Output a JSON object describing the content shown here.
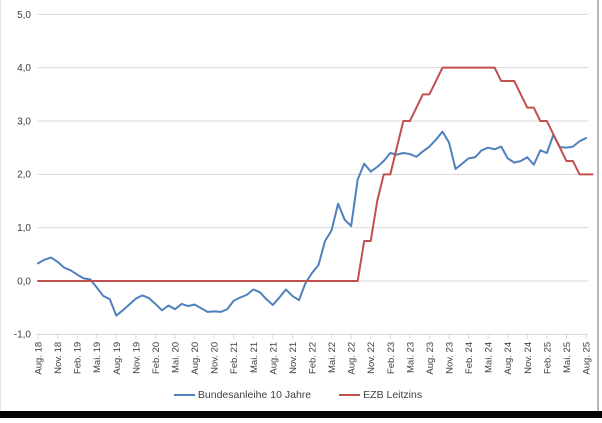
{
  "chart_data": {
    "type": "line",
    "title": "",
    "xlabel": "",
    "ylabel": "",
    "grid": true,
    "legend_position": "bottom",
    "ylim": [
      -1.0,
      5.0
    ],
    "y_tick_values": [
      5,
      4,
      3,
      2,
      1,
      0,
      -1
    ],
    "y_tick_labels": [
      "5,0",
      "4,0",
      "3,0",
      "2,0",
      "1,0",
      "0,0",
      "-1,0"
    ],
    "x_tick_labels": [
      "Aug. 18",
      "Nov. 18",
      "Feb. 19",
      "Mai. 19",
      "Aug. 19",
      "Nov. 19",
      "Feb. 20",
      "Mai. 20",
      "Aug. 20",
      "Nov. 20",
      "Feb. 21",
      "Mai. 21",
      "Aug. 21",
      "Nov. 21",
      "Feb. 22",
      "Mai. 22",
      "Aug. 22",
      "Nov. 22",
      "Feb. 23",
      "Mai. 23",
      "Aug. 23",
      "Nov. 23",
      "Feb. 24",
      "Mai. 24",
      "Aug. 24",
      "Nov. 24",
      "Feb. 25",
      "Mai. 25",
      "Aug. 25"
    ],
    "x_points_per_tick": 3,
    "n_points": 85,
    "series": [
      {
        "name": "Bundesanleihe 10 Jahre",
        "color": "#4F81BD",
        "values": [
          0.33,
          0.4,
          0.44,
          0.36,
          0.25,
          0.2,
          0.12,
          0.05,
          0.03,
          -0.12,
          -0.28,
          -0.34,
          -0.65,
          -0.55,
          -0.44,
          -0.33,
          -0.27,
          -0.32,
          -0.43,
          -0.55,
          -0.46,
          -0.53,
          -0.43,
          -0.47,
          -0.44,
          -0.51,
          -0.58,
          -0.57,
          -0.58,
          -0.53,
          -0.37,
          -0.31,
          -0.26,
          -0.16,
          -0.21,
          -0.34,
          -0.45,
          -0.31,
          -0.16,
          -0.28,
          -0.36,
          -0.04,
          0.15,
          0.3,
          0.75,
          0.95,
          1.45,
          1.15,
          1.03,
          1.9,
          2.2,
          2.05,
          2.14,
          2.25,
          2.4,
          2.37,
          2.4,
          2.38,
          2.33,
          2.43,
          2.52,
          2.65,
          2.8,
          2.6,
          2.1,
          2.2,
          2.3,
          2.32,
          2.45,
          2.5,
          2.47,
          2.52,
          2.3,
          2.22,
          2.25,
          2.32,
          2.18,
          2.45,
          2.4,
          2.74,
          2.51,
          2.5,
          2.52,
          2.62,
          2.68
        ]
      },
      {
        "name": "EZB Leitzins",
        "color": "#C0504D",
        "values": [
          0,
          0,
          0,
          0,
          0,
          0,
          0,
          0,
          0,
          0,
          0,
          0,
          0,
          0,
          0,
          0,
          0,
          0,
          0,
          0,
          0,
          0,
          0,
          0,
          0,
          0,
          0,
          0,
          0,
          0,
          0,
          0,
          0,
          0,
          0,
          0,
          0,
          0,
          0,
          0,
          0,
          0,
          0,
          0,
          0,
          0,
          0,
          0,
          0,
          0,
          0.75,
          0.75,
          1.5,
          2.0,
          2.0,
          2.5,
          3.0,
          3.0,
          3.25,
          3.5,
          3.5,
          3.75,
          4.0,
          4.0,
          4.0,
          4.0,
          4.0,
          4.0,
          4.0,
          4.0,
          4.0,
          3.75,
          3.75,
          3.75,
          3.5,
          3.25,
          3.25,
          3.0,
          3.0,
          2.75,
          2.5,
          2.25,
          2.25,
          2.0,
          2.0,
          2.0
        ]
      }
    ]
  },
  "colors": {
    "gridline": "#D9D9D9",
    "axis_text": "#404040",
    "background": "#FFFFFF",
    "bottom_bar": "#000000",
    "right_border": "#B7B7B7"
  }
}
